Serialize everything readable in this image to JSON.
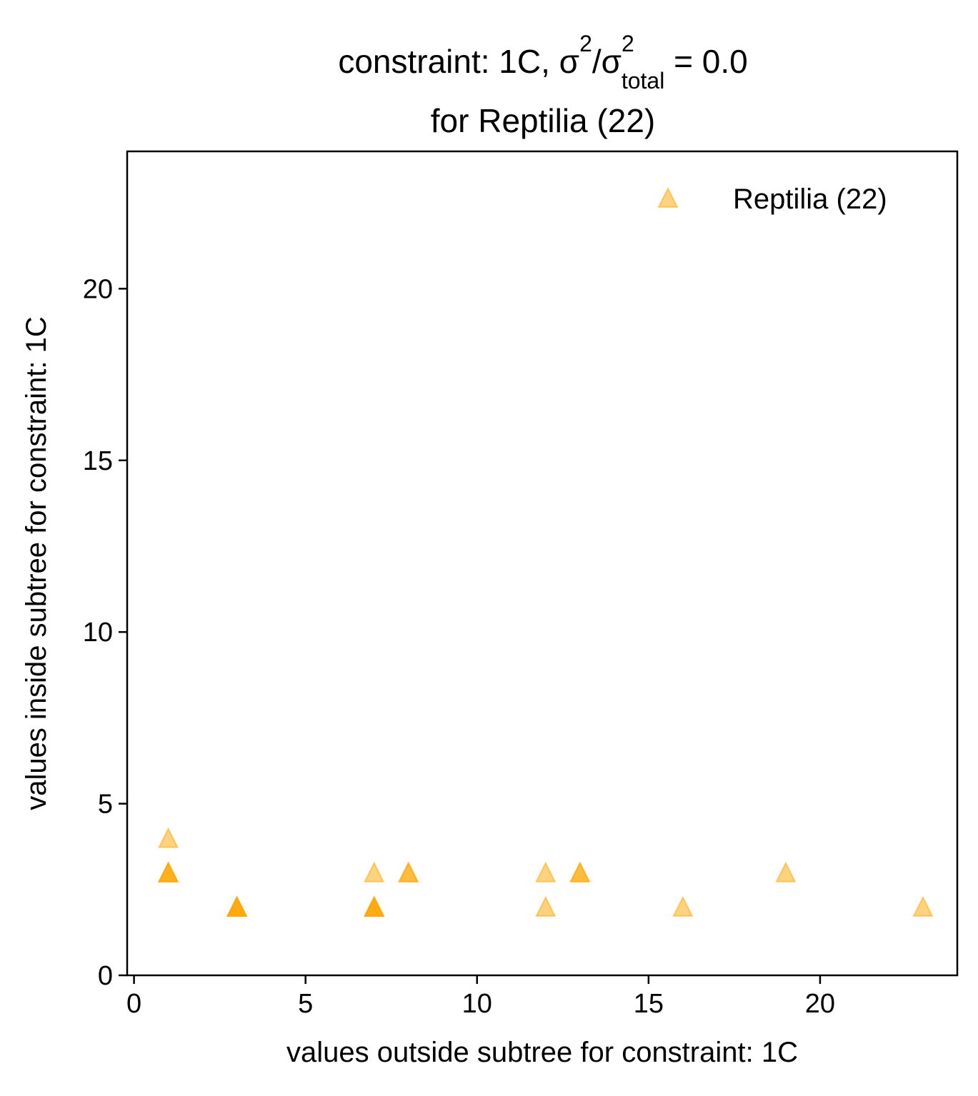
{
  "chart_data": {
    "type": "scatter",
    "title": {
      "line1_prefix": "constraint: 1C, σ",
      "sup1": "2",
      "mid": "/σ",
      "sup2": "2",
      "sub": "total",
      "line1_suffix": " =  0.0",
      "line2": "for Reptilia (22)"
    },
    "xlabel": "values outside subtree for constraint: 1C",
    "ylabel": "values inside subtree for constraint: 1C",
    "xlim": [
      -0.2,
      24
    ],
    "ylim": [
      0,
      24
    ],
    "x_ticks": [
      0,
      5,
      10,
      15,
      20
    ],
    "y_ticks": [
      0,
      5,
      10,
      15,
      20
    ],
    "legend_position": "upper right",
    "grid": false,
    "series": [
      {
        "name": "Reptilia (22)",
        "color": "#ffa500",
        "marker": "triangle",
        "alpha": 0.5,
        "points": [
          {
            "x": 1,
            "y": 4
          },
          {
            "x": 1,
            "y": 3
          },
          {
            "x": 1,
            "y": 3
          },
          {
            "x": 1,
            "y": 3
          },
          {
            "x": 3,
            "y": 2
          },
          {
            "x": 3,
            "y": 2
          },
          {
            "x": 3,
            "y": 2
          },
          {
            "x": 3,
            "y": 2
          },
          {
            "x": 7,
            "y": 3
          },
          {
            "x": 7,
            "y": 2
          },
          {
            "x": 7,
            "y": 2
          },
          {
            "x": 7,
            "y": 2
          },
          {
            "x": 7,
            "y": 2
          },
          {
            "x": 8,
            "y": 3
          },
          {
            "x": 8,
            "y": 3
          },
          {
            "x": 12,
            "y": 3
          },
          {
            "x": 12,
            "y": 2
          },
          {
            "x": 13,
            "y": 3
          },
          {
            "x": 13,
            "y": 3
          },
          {
            "x": 16,
            "y": 2
          },
          {
            "x": 19,
            "y": 3
          },
          {
            "x": 23,
            "y": 2
          }
        ]
      }
    ]
  }
}
